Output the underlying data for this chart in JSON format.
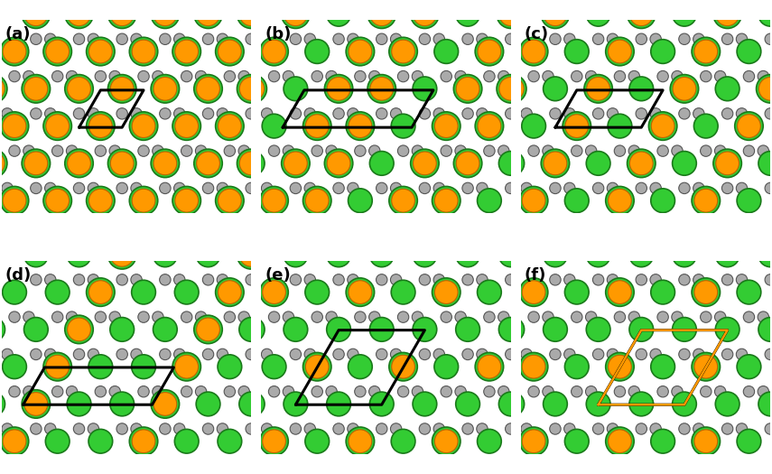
{
  "panels": [
    "(a)",
    "(b)",
    "(c)",
    "(d)",
    "(e)",
    "(f)"
  ],
  "bg_color": "#ffffff",
  "cd_color": "#33cc33",
  "cd_edge_color": "#1a7a1a",
  "sad_color": "#ff9900",
  "sad_edge_color": "#bb6600",
  "small_color": "#aaaaaa",
  "small_edge_color": "#555555",
  "bond_color": "#444444",
  "cell_black": "#000000",
  "cell_orange": "#ff9900",
  "cell_lw": 2.2,
  "panel_fs": 13
}
